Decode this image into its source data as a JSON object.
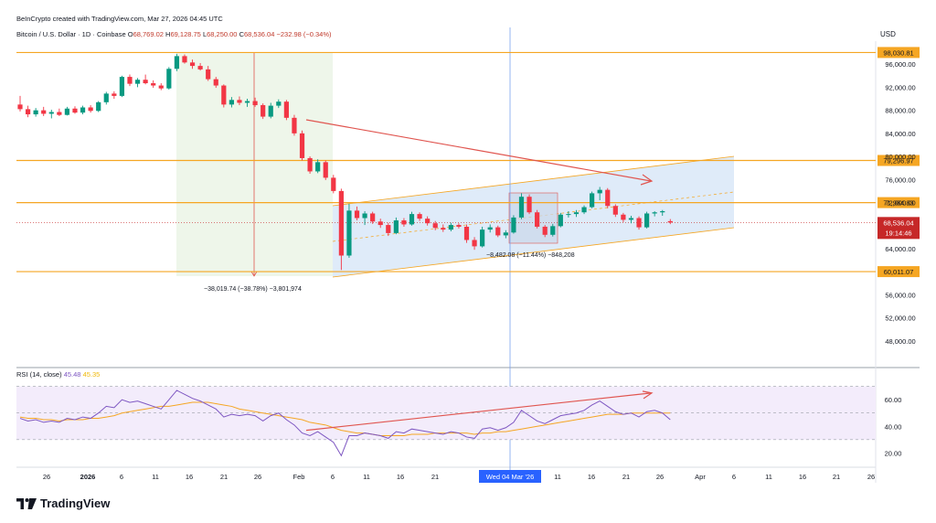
{
  "header": {
    "credit": "BeInCrypto created with TradingView.com, Mar 27, 2026 04:45 UTC",
    "symbol": "Bitcoin / U.S. Dollar · 1D · Coinbase",
    "open_label": "O",
    "open": "68,769.02",
    "high_label": "H",
    "high": "69,128.75",
    "low_label": "L",
    "low": "68,250.00",
    "close_label": "C",
    "close": "68,536.04",
    "change": "−232.98 (−0.34%)",
    "currency": "USD"
  },
  "rsi_legend": {
    "label": "RSI (14, close)",
    "value": "45.48",
    "ma_value": "45.35"
  },
  "annotations": {
    "drop": "−38,019.74 (−38.78%) −3,801,974",
    "range": "−8,482.08 (−11.44%) −848,208"
  },
  "branding": {
    "name": "TradingView",
    "logo_icon": "tradingview-logo-icon"
  },
  "chart_data": {
    "type": "candlestick",
    "price_axis": {
      "ticks": [
        96000,
        92000,
        88000,
        84000,
        80000,
        76000,
        72000,
        64000,
        56000,
        52000,
        48000
      ],
      "tick_labels": [
        "96,000.00",
        "92,000.00",
        "88,000.00",
        "84,000.00",
        "80,000.00",
        "76,000.00",
        "72,000.00",
        "64,000.00",
        "56,000.00",
        "52,000.00",
        "48,000.00"
      ],
      "ylim": [
        44000,
        100000
      ]
    },
    "levels": [
      {
        "value": 98030.81,
        "label": "98,030.81",
        "color": "#f5a623"
      },
      {
        "value": 79296.97,
        "label": "79,296.97",
        "color": "#f5a623"
      },
      {
        "value": 71984.83,
        "label": "71,984.83",
        "color": "#f5a623"
      },
      {
        "value": 60011.07,
        "label": "60,011.07",
        "color": "#f5a623"
      }
    ],
    "last_price": {
      "label": "68,536.04",
      "countdown": "19:14:46",
      "color": "#c62828"
    },
    "x_axis": {
      "labels": [
        "26",
        "2026",
        "6",
        "11",
        "16",
        "21",
        "26",
        "Feb",
        "6",
        "11",
        "16",
        "21",
        "Wed 04 Mar '26",
        "11",
        "16",
        "21",
        "26",
        "Apr",
        "6",
        "11",
        "16",
        "21",
        "26"
      ],
      "highlight": "Wed 04 Mar '26"
    },
    "rsi_axis": {
      "ticks": [
        60,
        40,
        20
      ],
      "tick_labels": [
        "60.00",
        "40.00",
        "20.00"
      ],
      "ylim": [
        10,
        80
      ],
      "band": [
        30,
        70
      ]
    },
    "candles": [
      [
        89000,
        90500,
        87800,
        88200
      ],
      [
        88200,
        88800,
        86800,
        87300
      ],
      [
        87300,
        88400,
        86900,
        88000
      ],
      [
        88000,
        88600,
        87000,
        87400
      ],
      [
        87400,
        88100,
        86600,
        87700
      ],
      [
        87700,
        88300,
        87000,
        87200
      ],
      [
        87200,
        88600,
        87100,
        88300
      ],
      [
        88300,
        88700,
        87400,
        87600
      ],
      [
        87600,
        88800,
        87300,
        88500
      ],
      [
        88500,
        88900,
        87600,
        87900
      ],
      [
        87900,
        89600,
        87700,
        89400
      ],
      [
        89400,
        91200,
        89000,
        90900
      ],
      [
        90900,
        91300,
        90000,
        90500
      ],
      [
        90500,
        94000,
        90300,
        93800
      ],
      [
        93800,
        94200,
        92200,
        92600
      ],
      [
        92600,
        93600,
        92000,
        93300
      ],
      [
        93300,
        94200,
        92500,
        92700
      ],
      [
        92700,
        93200,
        91900,
        92300
      ],
      [
        92300,
        92700,
        91500,
        91800
      ],
      [
        91800,
        95500,
        91600,
        95200
      ],
      [
        95200,
        97800,
        94800,
        97400
      ],
      [
        97400,
        97700,
        96100,
        96300
      ],
      [
        96300,
        96800,
        95200,
        95700
      ],
      [
        95700,
        96200,
        94900,
        95100
      ],
      [
        95100,
        95700,
        93100,
        93400
      ],
      [
        93400,
        93800,
        91900,
        92300
      ],
      [
        92300,
        92500,
        88500,
        89000
      ],
      [
        89000,
        90300,
        88500,
        89800
      ],
      [
        89800,
        90400,
        88900,
        89300
      ],
      [
        89300,
        90000,
        88600,
        89600
      ],
      [
        89600,
        90200,
        88600,
        88900
      ],
      [
        88900,
        89200,
        86500,
        86900
      ],
      [
        86900,
        89300,
        86600,
        88800
      ],
      [
        88800,
        89900,
        88400,
        89500
      ],
      [
        89500,
        89800,
        86300,
        86700
      ],
      [
        86700,
        87200,
        83600,
        84000
      ],
      [
        84000,
        84500,
        79300,
        79700
      ],
      [
        79700,
        80000,
        77000,
        77400
      ],
      [
        77400,
        79500,
        77100,
        79000
      ],
      [
        79000,
        79300,
        75900,
        76300
      ],
      [
        76300,
        76800,
        73600,
        74000
      ],
      [
        74000,
        74400,
        60300,
        62800
      ],
      [
        62800,
        71800,
        62400,
        70600
      ],
      [
        70600,
        71300,
        68900,
        69300
      ],
      [
        69300,
        70500,
        68100,
        70100
      ],
      [
        70100,
        70400,
        68300,
        68700
      ],
      [
        68700,
        69200,
        67600,
        68100
      ],
      [
        68100,
        68500,
        66200,
        66700
      ],
      [
        66700,
        69400,
        66500,
        68900
      ],
      [
        68900,
        69300,
        67800,
        68200
      ],
      [
        68200,
        70400,
        68000,
        70000
      ],
      [
        70000,
        70300,
        68800,
        69200
      ],
      [
        69200,
        69600,
        68000,
        68400
      ],
      [
        68400,
        68800,
        67200,
        67600
      ],
      [
        67600,
        68200,
        66900,
        67300
      ],
      [
        67300,
        68500,
        67000,
        68100
      ],
      [
        68100,
        68400,
        67500,
        67800
      ],
      [
        67800,
        68200,
        65000,
        65500
      ],
      [
        65500,
        66000,
        63800,
        64400
      ],
      [
        64400,
        67800,
        64200,
        67300
      ],
      [
        67300,
        68200,
        66800,
        67700
      ],
      [
        67700,
        68000,
        66000,
        66300
      ],
      [
        66300,
        67200,
        65800,
        66800
      ],
      [
        66800,
        69800,
        66600,
        69400
      ],
      [
        69400,
        73600,
        69100,
        73000
      ],
      [
        73000,
        73400,
        70000,
        70300
      ],
      [
        70300,
        70700,
        67500,
        67800
      ],
      [
        67800,
        68100,
        66000,
        66400
      ],
      [
        66400,
        68300,
        66100,
        67900
      ],
      [
        67900,
        70200,
        67700,
        69900
      ],
      [
        69900,
        70500,
        69400,
        70000
      ],
      [
        70000,
        70700,
        69500,
        70300
      ],
      [
        70300,
        71500,
        70000,
        71200
      ],
      [
        71200,
        73900,
        71000,
        73600
      ],
      [
        73600,
        74700,
        72400,
        74200
      ],
      [
        74200,
        74500,
        71000,
        71400
      ],
      [
        71400,
        71700,
        69500,
        69900
      ],
      [
        69900,
        70200,
        68600,
        69000
      ],
      [
        69000,
        69700,
        68400,
        69300
      ],
      [
        69300,
        69600,
        67300,
        67700
      ],
      [
        67700,
        70400,
        67500,
        70100
      ],
      [
        70100,
        70500,
        69600,
        70300
      ],
      [
        70300,
        70700,
        69700,
        70500
      ],
      [
        68769,
        69129,
        68250,
        68536
      ]
    ],
    "rsi": [
      46,
      44,
      45,
      43,
      44,
      43,
      46,
      45,
      47,
      46,
      50,
      55,
      54,
      60,
      58,
      59,
      57,
      55,
      53,
      60,
      67,
      64,
      61,
      59,
      56,
      53,
      47,
      49,
      48,
      49,
      48,
      44,
      48,
      50,
      45,
      41,
      35,
      33,
      36,
      32,
      28,
      18,
      33,
      33,
      35,
      34,
      33,
      31,
      36,
      35,
      38,
      37,
      36,
      35,
      34,
      36,
      35,
      32,
      31,
      38,
      39,
      37,
      39,
      43,
      52,
      48,
      44,
      42,
      45,
      48,
      49,
      50,
      52,
      56,
      59,
      55,
      51,
      49,
      50,
      47,
      51,
      52,
      50,
      45
    ],
    "rsi_ma": [
      47,
      46,
      46,
      45,
      45,
      44,
      45,
      45,
      45,
      46,
      46,
      47,
      48,
      50,
      51,
      52,
      53,
      54,
      55,
      55,
      56,
      57,
      58,
      58,
      58,
      57,
      56,
      55,
      53,
      52,
      51,
      50,
      49,
      48,
      47,
      46,
      45,
      43,
      42,
      41,
      39,
      37,
      36,
      35,
      35,
      34,
      33,
      33,
      33,
      33,
      34,
      34,
      34,
      35,
      35,
      35,
      35,
      35,
      34,
      35,
      35,
      36,
      36,
      37,
      38,
      39,
      40,
      41,
      42,
      43,
      44,
      45,
      46,
      47,
      48,
      49,
      49,
      49,
      50,
      50,
      50,
      50,
      50,
      50
    ],
    "colors": {
      "up": "#089981",
      "down": "#f23645",
      "rsi": "#7e57c2",
      "rsi_ma": "#f5a623",
      "trend_arrow": "#e0554f",
      "channel": "#dbe8f8"
    }
  }
}
